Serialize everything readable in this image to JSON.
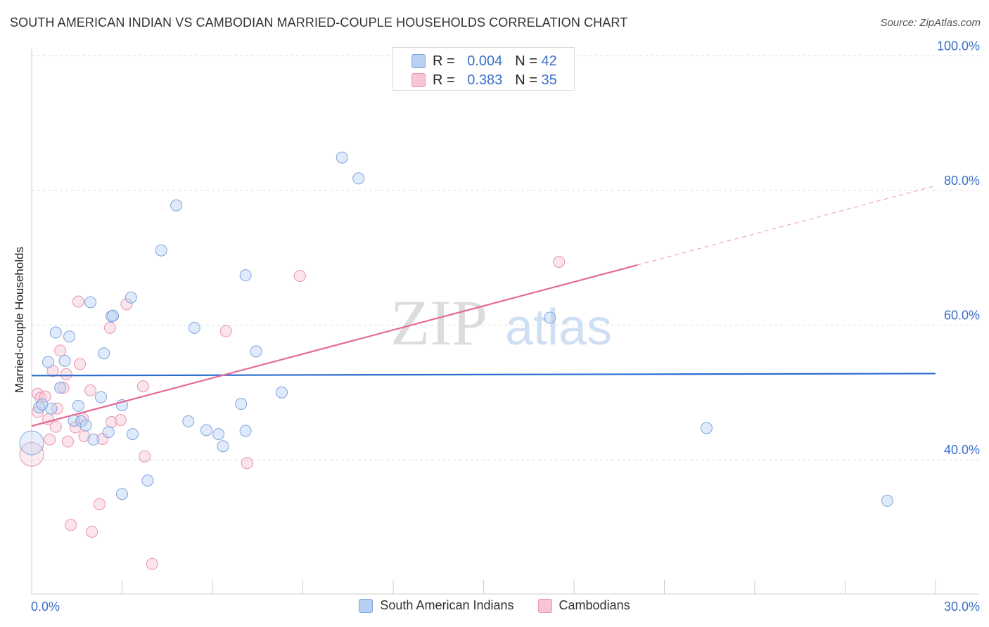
{
  "title": "SOUTH AMERICAN INDIAN VS CAMBODIAN MARRIED-COUPLE HOUSEHOLDS CORRELATION CHART",
  "source": "Source: ZipAtlas.com",
  "watermark": {
    "zip": "ZIP",
    "atlas": "atlas"
  },
  "legend_top": [
    {
      "r_label": "R =",
      "r_value": "0.004",
      "n_label": "N =",
      "n_value": "42"
    },
    {
      "r_label": "R =",
      "r_value": "0.383",
      "n_label": "N =",
      "n_value": "35"
    }
  ],
  "legend_bottom": [
    "South American Indians",
    "Cambodians"
  ],
  "colors": {
    "blue_fill": "#b8d0f3",
    "blue_stroke": "#7fa5dc",
    "blue_line": "#2a6ccf",
    "pink_fill": "#f7c5d5",
    "pink_stroke": "#ea93b0",
    "pink_line": "#e46b96",
    "grid": "#dddddd",
    "axis_text": "#3a6fc8"
  },
  "chart_data": {
    "type": "scatter",
    "title": "SOUTH AMERICAN INDIAN VS CAMBODIAN MARRIED-COUPLE HOUSEHOLDS CORRELATION CHART",
    "xlabel": "",
    "ylabel": "Married-couple Households",
    "xlim": [
      0,
      30
    ],
    "ylim": [
      22,
      102
    ],
    "x_tick_labels": [
      "0.0%",
      "30.0%"
    ],
    "y_ticks": [
      40,
      60,
      80,
      100
    ],
    "y_tick_labels": [
      "40.0%",
      "60.0%",
      "80.0%",
      "100.0%"
    ],
    "grid": true,
    "series": [
      {
        "name": "South American Indians",
        "r": 0.004,
        "n": 42,
        "trend": {
          "x": [
            0,
            30
          ],
          "y": [
            52.5,
            52.8
          ],
          "dashed_from": null
        },
        "points": [
          {
            "x": 0.0,
            "y": 42.5,
            "big": true
          },
          {
            "x": 0.25,
            "y": 47.8
          },
          {
            "x": 0.35,
            "y": 48.2
          },
          {
            "x": 0.55,
            "y": 54.5
          },
          {
            "x": 0.65,
            "y": 47.6
          },
          {
            "x": 0.8,
            "y": 58.9
          },
          {
            "x": 0.95,
            "y": 50.7
          },
          {
            "x": 1.1,
            "y": 54.7
          },
          {
            "x": 1.25,
            "y": 58.3
          },
          {
            "x": 1.4,
            "y": 45.8
          },
          {
            "x": 1.55,
            "y": 48.0
          },
          {
            "x": 1.65,
            "y": 45.7
          },
          {
            "x": 1.8,
            "y": 45.1
          },
          {
            "x": 1.95,
            "y": 63.4
          },
          {
            "x": 2.05,
            "y": 43.0
          },
          {
            "x": 2.3,
            "y": 49.3
          },
          {
            "x": 2.4,
            "y": 55.8
          },
          {
            "x": 2.55,
            "y": 44.1
          },
          {
            "x": 2.65,
            "y": 61.3
          },
          {
            "x": 2.7,
            "y": 61.4
          },
          {
            "x": 3.0,
            "y": 48.1
          },
          {
            "x": 3.0,
            "y": 34.9
          },
          {
            "x": 3.3,
            "y": 64.1
          },
          {
            "x": 3.35,
            "y": 43.8
          },
          {
            "x": 3.85,
            "y": 36.9
          },
          {
            "x": 4.3,
            "y": 71.1
          },
          {
            "x": 4.8,
            "y": 77.8
          },
          {
            "x": 5.2,
            "y": 45.7
          },
          {
            "x": 5.4,
            "y": 59.6
          },
          {
            "x": 5.8,
            "y": 44.4
          },
          {
            "x": 6.2,
            "y": 43.8
          },
          {
            "x": 6.35,
            "y": 42.0
          },
          {
            "x": 6.95,
            "y": 48.3
          },
          {
            "x": 7.1,
            "y": 67.4
          },
          {
            "x": 7.1,
            "y": 44.3
          },
          {
            "x": 7.45,
            "y": 56.1
          },
          {
            "x": 8.3,
            "y": 50.0
          },
          {
            "x": 10.3,
            "y": 84.9
          },
          {
            "x": 10.85,
            "y": 81.8
          },
          {
            "x": 17.2,
            "y": 61.1
          },
          {
            "x": 22.4,
            "y": 44.7
          },
          {
            "x": 28.4,
            "y": 33.9
          }
        ]
      },
      {
        "name": "Cambodians",
        "r": 0.383,
        "n": 35,
        "trend": {
          "x": [
            0,
            30
          ],
          "y": [
            45.0,
            80.7
          ],
          "dashed_from": 20.1
        },
        "points": [
          {
            "x": 0.0,
            "y": 40.8,
            "big": true
          },
          {
            "x": 0.2,
            "y": 49.8
          },
          {
            "x": 0.3,
            "y": 49.2
          },
          {
            "x": 0.45,
            "y": 49.4
          },
          {
            "x": 0.55,
            "y": 46.0
          },
          {
            "x": 0.6,
            "y": 43.0
          },
          {
            "x": 0.7,
            "y": 53.2
          },
          {
            "x": 0.8,
            "y": 44.9
          },
          {
            "x": 0.85,
            "y": 47.6
          },
          {
            "x": 0.95,
            "y": 56.2
          },
          {
            "x": 1.05,
            "y": 50.7
          },
          {
            "x": 1.15,
            "y": 52.7
          },
          {
            "x": 1.2,
            "y": 42.7
          },
          {
            "x": 1.3,
            "y": 30.3
          },
          {
            "x": 1.45,
            "y": 44.8
          },
          {
            "x": 1.55,
            "y": 63.5
          },
          {
            "x": 1.6,
            "y": 54.2
          },
          {
            "x": 1.7,
            "y": 46.1
          },
          {
            "x": 1.75,
            "y": 43.5
          },
          {
            "x": 1.95,
            "y": 50.3
          },
          {
            "x": 2.0,
            "y": 29.3
          },
          {
            "x": 2.25,
            "y": 33.4
          },
          {
            "x": 2.35,
            "y": 43.1
          },
          {
            "x": 2.6,
            "y": 59.6
          },
          {
            "x": 2.65,
            "y": 45.6
          },
          {
            "x": 2.95,
            "y": 45.9
          },
          {
            "x": 3.15,
            "y": 63.1
          },
          {
            "x": 3.7,
            "y": 50.9
          },
          {
            "x": 3.75,
            "y": 40.5
          },
          {
            "x": 4.0,
            "y": 24.5
          },
          {
            "x": 6.45,
            "y": 59.1
          },
          {
            "x": 7.15,
            "y": 39.5
          },
          {
            "x": 8.9,
            "y": 67.3
          },
          {
            "x": 17.5,
            "y": 69.4
          },
          {
            "x": 0.2,
            "y": 47.1
          }
        ]
      }
    ]
  }
}
